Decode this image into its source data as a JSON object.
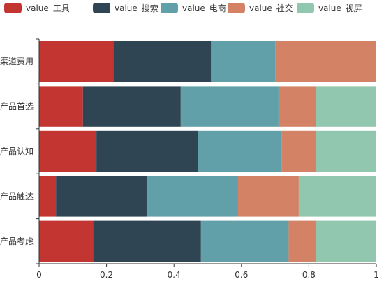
{
  "chart_data": {
    "type": "bar",
    "orientation": "horizontal",
    "stacked": true,
    "normalized": true,
    "categories": [
      "产品考虑",
      "产品触达",
      "产品认知",
      "产品首选",
      "渠道费用"
    ],
    "series": [
      {
        "name": "value_工具",
        "color": "#c23531",
        "values": [
          0.16,
          0.05,
          0.17,
          0.13,
          0.22
        ]
      },
      {
        "name": "value_搜索",
        "color": "#2f4554",
        "values": [
          0.32,
          0.27,
          0.3,
          0.29,
          0.29
        ]
      },
      {
        "name": "value_电商",
        "color": "#61a0a8",
        "values": [
          0.26,
          0.27,
          0.25,
          0.29,
          0.19
        ]
      },
      {
        "name": "value_社交",
        "color": "#d48265",
        "values": [
          0.08,
          0.18,
          0.1,
          0.11,
          0.3
        ]
      },
      {
        "name": "value_视屏",
        "color": "#91c7ae",
        "values": [
          0.18,
          0.23,
          0.18,
          0.18,
          0.0
        ]
      }
    ],
    "xlim": [
      0,
      1
    ],
    "xticks": [
      "0",
      "0.2",
      "0.4",
      "0.6",
      "0.8",
      "1"
    ],
    "grid": false,
    "legend_position": "top-left",
    "title": "",
    "xlabel": "",
    "ylabel": ""
  }
}
